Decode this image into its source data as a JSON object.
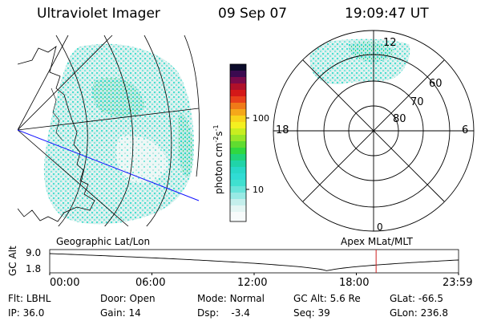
{
  "header": {
    "instrument": "Ultraviolet Imager",
    "date": "09 Sep 07",
    "time": "19:09:47 UT"
  },
  "colorbar": {
    "label": "photon cm",
    "label_sup1": "-2",
    "label_s": "s",
    "label_sup2": "-1",
    "ticks": [
      {
        "value": 100,
        "label": "100"
      },
      {
        "value": 10,
        "label": "10"
      }
    ],
    "scale": "log",
    "range": [
      2,
      400
    ]
  },
  "polar_plot": {
    "mlt_labels": {
      "top": "12",
      "left": "18",
      "right": "6",
      "bottom": "0"
    },
    "lat_labels": [
      "60",
      "70",
      "80"
    ]
  },
  "captions": {
    "geo": "Geographic Lat/Lon",
    "apex": "Apex MLat/MLT"
  },
  "altitude_plot": {
    "ylabel": "GC Alt",
    "y_ticks": [
      "9.0",
      "1.8"
    ],
    "x_ticks": [
      "00:00",
      "06:00",
      "12:00",
      "18:00",
      "23:59"
    ],
    "current_time_hours": 19.16
  },
  "info": {
    "filter": {
      "label": "Flt:",
      "value": "LBHL"
    },
    "door": {
      "label": "Door:",
      "value": "Open"
    },
    "mode": {
      "label": "Mode:",
      "value": "Normal"
    },
    "gc_alt": {
      "label": "GC Alt:",
      "value": "5.6 Re"
    },
    "glat": {
      "label": "GLat:",
      "value": "-66.5"
    },
    "ip": {
      "label": "IP:",
      "value": "36.0"
    },
    "gain": {
      "label": "Gain:",
      "value": "14"
    },
    "dsp": {
      "label": "Dsp:",
      "value": "-3.4"
    },
    "seq": {
      "label": "Seq:",
      "value": "39"
    },
    "glon": {
      "label": "GLon:",
      "value": "236.8"
    }
  },
  "colors": {
    "aurora_main": "#40e0d0",
    "aurora_light": "#c8ede8",
    "aurora_green": "#2fd87a",
    "blue_line": "#1010ff",
    "time_marker": "#d02020"
  }
}
